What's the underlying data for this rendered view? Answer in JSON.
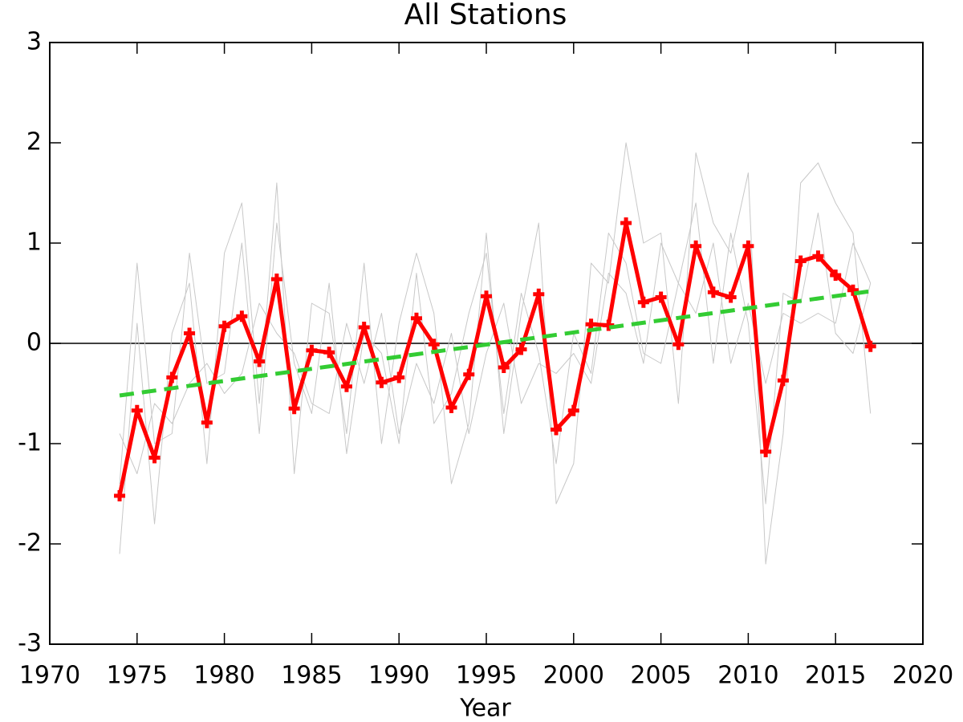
{
  "chart_data": {
    "type": "line",
    "title": "All Stations",
    "x_label": "Year",
    "x": [
      1974,
      1975,
      1976,
      1977,
      1978,
      1979,
      1980,
      1981,
      1982,
      1983,
      1984,
      1985,
      1986,
      1987,
      1988,
      1989,
      1990,
      1991,
      1992,
      1993,
      1994,
      1995,
      1996,
      1997,
      1998,
      1999,
      2000,
      2001,
      2002,
      2003,
      2004,
      2005,
      2006,
      2007,
      2008,
      2009,
      2010,
      2011,
      2012,
      2013,
      2014,
      2015,
      2016,
      2017
    ],
    "xlim": [
      1970,
      2020
    ],
    "xticks": [
      1970,
      1975,
      1980,
      1985,
      1990,
      1995,
      2000,
      2005,
      2010,
      2015,
      2020
    ],
    "ylim": [
      -3,
      3
    ],
    "yticks": [
      -3,
      -2,
      -1,
      0,
      1,
      2,
      3
    ],
    "series": [
      {
        "color": "#c8c8c8",
        "width": 1,
        "values": [
          -2.1,
          0.2,
          -1.8,
          0.1,
          0.6,
          -1.2,
          0.9,
          1.4,
          -0.6,
          1.6,
          -1.3,
          0.4,
          0.3,
          -0.9,
          0.8,
          -1.0,
          0.2,
          0.9,
          0.3,
          -1.4,
          -0.8,
          1.1,
          -0.9,
          0.3,
          1.2,
          -1.6,
          -1.2,
          0.8,
          0.6,
          2.0,
          1.0,
          1.1,
          -0.6,
          1.9,
          1.2,
          0.9,
          1.7,
          -2.2,
          -0.9,
          1.6,
          1.8,
          1.4,
          1.1,
          -0.7
        ]
      },
      {
        "color": "#c8c8c8",
        "width": 1,
        "values": [
          -0.9,
          -1.3,
          -0.6,
          -0.8,
          -0.4,
          -0.2,
          -0.5,
          -0.3,
          0.4,
          0.1,
          -0.1,
          -0.6,
          -0.7,
          0.2,
          -0.4,
          0.3,
          -0.9,
          -0.2,
          -0.6,
          0.1,
          -0.9,
          -0.1,
          0.4,
          -0.6,
          -0.2,
          -0.3,
          -0.1,
          -0.4,
          0.7,
          0.5,
          -0.2,
          1.0,
          0.6,
          0.3,
          1.0,
          -0.2,
          0.4,
          -0.4,
          0.3,
          0.2,
          0.3,
          0.2,
          1.0,
          0.6
        ]
      },
      {
        "color": "#c8c8c8",
        "width": 1,
        "values": [
          -1.4,
          0.8,
          -1.0,
          -0.9,
          0.9,
          -0.4,
          -0.3,
          1.0,
          -0.9,
          1.2,
          -0.2,
          -0.7,
          0.6,
          -1.1,
          0.1,
          -0.1,
          -1.0,
          0.7,
          -0.8,
          -0.5,
          0.3,
          0.9,
          -0.7,
          0.5,
          -0.1,
          -1.2,
          0.1,
          -0.3,
          1.1,
          0.8,
          -0.1,
          -0.2,
          0.6,
          1.4,
          -0.2,
          1.1,
          0.2,
          -1.6,
          0.5,
          0.4,
          1.3,
          0.1,
          -0.1,
          0.6
        ]
      },
      {
        "color": "#ff0000",
        "width": 5,
        "marker": "plus",
        "values": [
          -1.52,
          -0.67,
          -1.14,
          -0.34,
          0.1,
          -0.79,
          0.17,
          0.27,
          -0.18,
          0.64,
          -0.65,
          -0.07,
          -0.09,
          -0.43,
          0.16,
          -0.39,
          -0.34,
          0.25,
          -0.01,
          -0.64,
          -0.31,
          0.47,
          -0.24,
          -0.06,
          0.49,
          -0.86,
          -0.67,
          0.19,
          0.18,
          1.2,
          0.41,
          0.46,
          -0.01,
          0.97,
          0.51,
          0.46,
          0.97,
          -1.08,
          -0.37,
          0.82,
          0.87,
          0.68,
          0.53,
          -0.03
        ]
      },
      {
        "color": "#33cc33",
        "width": 5,
        "dashed": true,
        "x": [
          1974,
          2017
        ],
        "values": [
          -0.52,
          0.52
        ]
      }
    ]
  }
}
